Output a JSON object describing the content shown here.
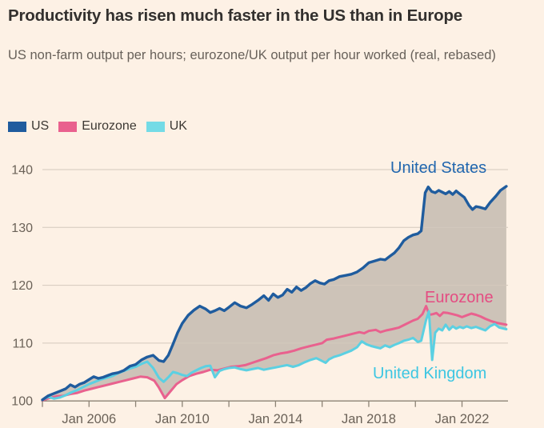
{
  "page": {
    "background_color": "#fdf1e5"
  },
  "chart_data": {
    "type": "line",
    "title": "Productivity has risen much faster in the US than in Europe",
    "subtitle": "US non-farm output per hours; eurozone/UK output per hour worked (real, rebased)",
    "grid": "horizontal",
    "legend_position": "top-left",
    "colors": {
      "background": "#fdf1e5",
      "gridline": "#d4c9bd",
      "axis_line": "#8c8375",
      "band_fill": "rgba(95,88,78,0.30)",
      "title_text": "#33302e",
      "axis_text": "#6b6258"
    },
    "x_axis": {
      "start_year": 2004,
      "end_year": 2023.9,
      "tick_years": [
        2004,
        2006,
        2008,
        2010,
        2012,
        2014,
        2016,
        2018,
        2020,
        2022
      ],
      "labels": [
        {
          "year": 2006,
          "label": "Jan 2006"
        },
        {
          "year": 2010,
          "label": "Jan 2010"
        },
        {
          "year": 2014,
          "label": "Jan 2014"
        },
        {
          "year": 2018,
          "label": "Jan 2018"
        },
        {
          "year": 2022,
          "label": "Jan 2022"
        }
      ]
    },
    "y_axis": {
      "min": 100,
      "max": 140,
      "ticks": [
        100,
        110,
        120,
        130,
        140
      ]
    },
    "band_fill_between": [
      "US",
      "min(Eurozone, UK)"
    ],
    "series": [
      {
        "name": "US",
        "legend_label": "US",
        "annotation": "United States",
        "color": "#1f5c9e",
        "points": [
          [
            2004.0,
            100.2
          ],
          [
            2004.25,
            100.9
          ],
          [
            2004.5,
            101.3
          ],
          [
            2004.75,
            101.7
          ],
          [
            2005.0,
            102.1
          ],
          [
            2005.2,
            102.8
          ],
          [
            2005.4,
            102.4
          ],
          [
            2005.6,
            102.9
          ],
          [
            2005.8,
            103.2
          ],
          [
            2006.0,
            103.7
          ],
          [
            2006.2,
            104.2
          ],
          [
            2006.4,
            103.9
          ],
          [
            2006.6,
            104.1
          ],
          [
            2006.8,
            104.4
          ],
          [
            2007.0,
            104.7
          ],
          [
            2007.25,
            104.9
          ],
          [
            2007.5,
            105.3
          ],
          [
            2007.75,
            106.0
          ],
          [
            2008.0,
            106.3
          ],
          [
            2008.25,
            107.1
          ],
          [
            2008.5,
            107.6
          ],
          [
            2008.75,
            107.9
          ],
          [
            2009.0,
            107.0
          ],
          [
            2009.2,
            106.8
          ],
          [
            2009.4,
            107.9
          ],
          [
            2009.6,
            109.8
          ],
          [
            2009.8,
            111.8
          ],
          [
            2010.0,
            113.4
          ],
          [
            2010.25,
            114.8
          ],
          [
            2010.5,
            115.7
          ],
          [
            2010.75,
            116.4
          ],
          [
            2011.0,
            115.9
          ],
          [
            2011.2,
            115.3
          ],
          [
            2011.4,
            115.6
          ],
          [
            2011.6,
            116.0
          ],
          [
            2011.8,
            115.6
          ],
          [
            2012.0,
            116.2
          ],
          [
            2012.25,
            117.0
          ],
          [
            2012.5,
            116.4
          ],
          [
            2012.75,
            116.1
          ],
          [
            2013.0,
            116.7
          ],
          [
            2013.25,
            117.4
          ],
          [
            2013.5,
            118.2
          ],
          [
            2013.7,
            117.4
          ],
          [
            2013.9,
            118.5
          ],
          [
            2014.1,
            117.9
          ],
          [
            2014.3,
            118.3
          ],
          [
            2014.5,
            119.3
          ],
          [
            2014.7,
            118.8
          ],
          [
            2014.9,
            119.7
          ],
          [
            2015.1,
            119.1
          ],
          [
            2015.3,
            119.6
          ],
          [
            2015.5,
            120.3
          ],
          [
            2015.7,
            120.8
          ],
          [
            2015.9,
            120.4
          ],
          [
            2016.1,
            120.2
          ],
          [
            2016.3,
            120.8
          ],
          [
            2016.5,
            121.0
          ],
          [
            2016.75,
            121.5
          ],
          [
            2017.0,
            121.7
          ],
          [
            2017.25,
            121.9
          ],
          [
            2017.5,
            122.3
          ],
          [
            2017.75,
            123.0
          ],
          [
            2018.0,
            123.9
          ],
          [
            2018.25,
            124.2
          ],
          [
            2018.5,
            124.5
          ],
          [
            2018.7,
            124.4
          ],
          [
            2018.9,
            125.0
          ],
          [
            2019.1,
            125.6
          ],
          [
            2019.3,
            126.5
          ],
          [
            2019.5,
            127.7
          ],
          [
            2019.7,
            128.3
          ],
          [
            2019.9,
            128.7
          ],
          [
            2020.1,
            128.9
          ],
          [
            2020.25,
            129.4
          ],
          [
            2020.42,
            136.0
          ],
          [
            2020.55,
            137.0
          ],
          [
            2020.7,
            136.2
          ],
          [
            2020.85,
            136.0
          ],
          [
            2021.0,
            136.4
          ],
          [
            2021.15,
            136.1
          ],
          [
            2021.3,
            135.8
          ],
          [
            2021.45,
            136.2
          ],
          [
            2021.6,
            135.7
          ],
          [
            2021.75,
            136.3
          ],
          [
            2021.9,
            135.8
          ],
          [
            2022.1,
            135.2
          ],
          [
            2022.3,
            133.8
          ],
          [
            2022.45,
            133.1
          ],
          [
            2022.6,
            133.6
          ],
          [
            2022.75,
            133.5
          ],
          [
            2023.0,
            133.2
          ],
          [
            2023.2,
            134.3
          ],
          [
            2023.45,
            135.4
          ],
          [
            2023.65,
            136.4
          ],
          [
            2023.9,
            137.1
          ]
        ]
      },
      {
        "name": "Eurozone",
        "legend_label": "Eurozone",
        "annotation": "Eurozone",
        "color": "#e9618e",
        "points": [
          [
            2004.0,
            100.1
          ],
          [
            2004.3,
            100.5
          ],
          [
            2004.6,
            100.8
          ],
          [
            2004.9,
            100.9
          ],
          [
            2005.2,
            101.2
          ],
          [
            2005.5,
            101.4
          ],
          [
            2005.8,
            101.8
          ],
          [
            2006.1,
            102.1
          ],
          [
            2006.4,
            102.4
          ],
          [
            2006.7,
            102.7
          ],
          [
            2007.0,
            103.0
          ],
          [
            2007.3,
            103.3
          ],
          [
            2007.6,
            103.6
          ],
          [
            2007.9,
            103.9
          ],
          [
            2008.2,
            104.2
          ],
          [
            2008.5,
            104.1
          ],
          [
            2008.8,
            103.5
          ],
          [
            2009.0,
            102.3
          ],
          [
            2009.25,
            100.5
          ],
          [
            2009.5,
            101.7
          ],
          [
            2009.75,
            102.9
          ],
          [
            2010.0,
            103.6
          ],
          [
            2010.3,
            104.3
          ],
          [
            2010.6,
            104.7
          ],
          [
            2010.9,
            105.0
          ],
          [
            2011.2,
            105.4
          ],
          [
            2011.5,
            105.3
          ],
          [
            2011.8,
            105.6
          ],
          [
            2012.1,
            105.9
          ],
          [
            2012.4,
            106.0
          ],
          [
            2012.7,
            106.2
          ],
          [
            2013.0,
            106.6
          ],
          [
            2013.3,
            107.0
          ],
          [
            2013.6,
            107.4
          ],
          [
            2013.9,
            107.9
          ],
          [
            2014.2,
            108.2
          ],
          [
            2014.5,
            108.4
          ],
          [
            2014.8,
            108.7
          ],
          [
            2015.1,
            109.1
          ],
          [
            2015.4,
            109.4
          ],
          [
            2015.7,
            109.7
          ],
          [
            2016.0,
            110.0
          ],
          [
            2016.2,
            110.6
          ],
          [
            2016.5,
            110.8
          ],
          [
            2016.8,
            111.1
          ],
          [
            2017.1,
            111.4
          ],
          [
            2017.4,
            111.7
          ],
          [
            2017.6,
            111.9
          ],
          [
            2017.8,
            111.7
          ],
          [
            2018.0,
            112.1
          ],
          [
            2018.3,
            112.3
          ],
          [
            2018.5,
            111.9
          ],
          [
            2018.75,
            112.2
          ],
          [
            2019.0,
            112.4
          ],
          [
            2019.3,
            112.7
          ],
          [
            2019.6,
            113.3
          ],
          [
            2019.9,
            113.9
          ],
          [
            2020.1,
            114.2
          ],
          [
            2020.3,
            115.0
          ],
          [
            2020.46,
            116.4
          ],
          [
            2020.6,
            114.9
          ],
          [
            2020.75,
            115.0
          ],
          [
            2020.9,
            115.2
          ],
          [
            2021.05,
            114.7
          ],
          [
            2021.2,
            115.3
          ],
          [
            2021.4,
            115.2
          ],
          [
            2021.6,
            115.0
          ],
          [
            2021.8,
            114.8
          ],
          [
            2022.0,
            114.5
          ],
          [
            2022.2,
            114.8
          ],
          [
            2022.4,
            115.1
          ],
          [
            2022.6,
            114.9
          ],
          [
            2022.8,
            114.6
          ],
          [
            2023.0,
            114.2
          ],
          [
            2023.25,
            113.8
          ],
          [
            2023.5,
            113.5
          ],
          [
            2023.9,
            113.2
          ]
        ]
      },
      {
        "name": "UK",
        "legend_label": "UK",
        "annotation": "United Kingdom",
        "color": "#5bd0e2",
        "points": [
          [
            2004.0,
            100.2
          ],
          [
            2004.25,
            100.7
          ],
          [
            2004.5,
            100.4
          ],
          [
            2004.75,
            100.6
          ],
          [
            2005.0,
            101.0
          ],
          [
            2005.25,
            101.5
          ],
          [
            2005.5,
            101.9
          ],
          [
            2005.75,
            102.4
          ],
          [
            2006.0,
            102.9
          ],
          [
            2006.25,
            103.3
          ],
          [
            2006.5,
            103.7
          ],
          [
            2006.75,
            104.0
          ],
          [
            2007.0,
            104.3
          ],
          [
            2007.25,
            104.8
          ],
          [
            2007.5,
            105.2
          ],
          [
            2007.75,
            105.6
          ],
          [
            2008.0,
            105.9
          ],
          [
            2008.25,
            106.4
          ],
          [
            2008.5,
            106.8
          ],
          [
            2008.75,
            105.7
          ],
          [
            2009.0,
            104.0
          ],
          [
            2009.2,
            103.3
          ],
          [
            2009.4,
            104.1
          ],
          [
            2009.6,
            105.0
          ],
          [
            2009.8,
            104.8
          ],
          [
            2010.0,
            104.5
          ],
          [
            2010.2,
            104.3
          ],
          [
            2010.4,
            104.9
          ],
          [
            2010.6,
            105.3
          ],
          [
            2010.8,
            105.7
          ],
          [
            2011.0,
            106.0
          ],
          [
            2011.2,
            106.1
          ],
          [
            2011.4,
            104.1
          ],
          [
            2011.6,
            105.2
          ],
          [
            2011.8,
            105.5
          ],
          [
            2012.0,
            105.7
          ],
          [
            2012.25,
            105.8
          ],
          [
            2012.5,
            105.5
          ],
          [
            2012.75,
            105.3
          ],
          [
            2013.0,
            105.5
          ],
          [
            2013.25,
            105.7
          ],
          [
            2013.5,
            105.4
          ],
          [
            2013.75,
            105.6
          ],
          [
            2014.0,
            105.8
          ],
          [
            2014.25,
            106.0
          ],
          [
            2014.5,
            106.2
          ],
          [
            2014.75,
            105.9
          ],
          [
            2015.0,
            106.2
          ],
          [
            2015.25,
            106.7
          ],
          [
            2015.5,
            107.1
          ],
          [
            2015.75,
            107.4
          ],
          [
            2016.0,
            106.9
          ],
          [
            2016.15,
            106.6
          ],
          [
            2016.3,
            107.2
          ],
          [
            2016.5,
            107.6
          ],
          [
            2016.75,
            107.9
          ],
          [
            2017.0,
            108.3
          ],
          [
            2017.25,
            108.7
          ],
          [
            2017.5,
            109.3
          ],
          [
            2017.7,
            110.3
          ],
          [
            2017.9,
            109.8
          ],
          [
            2018.1,
            109.5
          ],
          [
            2018.3,
            109.3
          ],
          [
            2018.5,
            109.1
          ],
          [
            2018.7,
            109.6
          ],
          [
            2018.9,
            109.3
          ],
          [
            2019.1,
            109.7
          ],
          [
            2019.3,
            110.0
          ],
          [
            2019.5,
            110.4
          ],
          [
            2019.7,
            110.6
          ],
          [
            2019.9,
            110.9
          ],
          [
            2020.1,
            110.2
          ],
          [
            2020.25,
            110.4
          ],
          [
            2020.45,
            113.9
          ],
          [
            2020.58,
            115.5
          ],
          [
            2020.72,
            107.1
          ],
          [
            2020.85,
            111.8
          ],
          [
            2021.0,
            112.5
          ],
          [
            2021.15,
            112.2
          ],
          [
            2021.3,
            113.2
          ],
          [
            2021.45,
            112.3
          ],
          [
            2021.6,
            112.9
          ],
          [
            2021.75,
            112.5
          ],
          [
            2021.9,
            112.8
          ],
          [
            2022.05,
            112.6
          ],
          [
            2022.2,
            112.9
          ],
          [
            2022.4,
            112.6
          ],
          [
            2022.6,
            112.8
          ],
          [
            2022.8,
            112.5
          ],
          [
            2023.0,
            112.2
          ],
          [
            2023.2,
            112.9
          ],
          [
            2023.4,
            113.3
          ],
          [
            2023.6,
            112.7
          ],
          [
            2023.9,
            112.4
          ]
        ]
      }
    ]
  }
}
